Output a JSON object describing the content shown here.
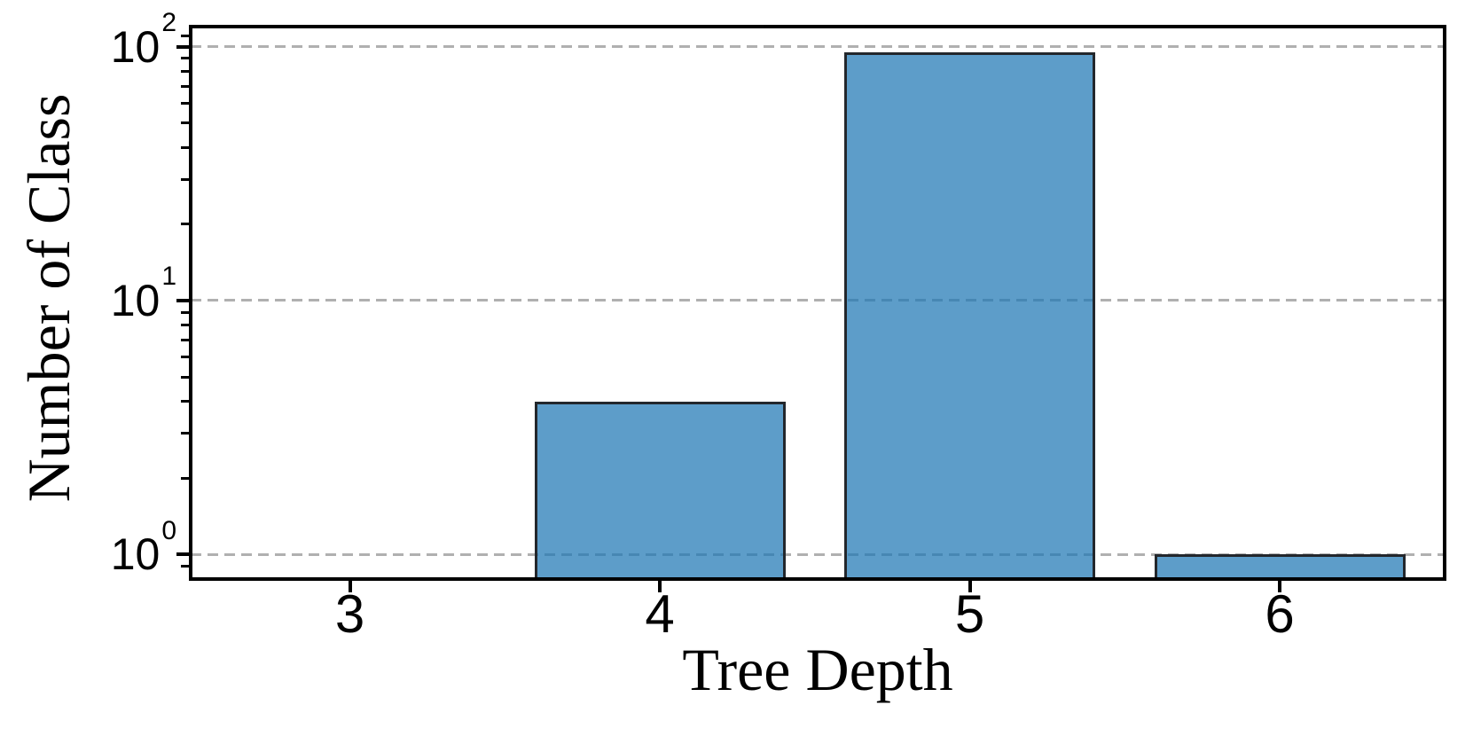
{
  "figure": {
    "background": "#ffffff"
  },
  "chart_data": {
    "type": "bar",
    "title": "",
    "xlabel": "Tree Depth",
    "ylabel": "Number of Class",
    "categories": [
      "3",
      "4",
      "5",
      "6"
    ],
    "x_positions": [
      3,
      4,
      5,
      6
    ],
    "values": [
      0,
      4,
      95,
      1
    ],
    "series_note": "single series; no bar drawn for category 3 (value 0 on log axis)",
    "yscale": "log",
    "ylim": [
      0.8,
      120
    ],
    "xlim": [
      2.49,
      6.53
    ],
    "bar_width_fraction": 0.81,
    "yticks_major": [
      {
        "value": 1,
        "base": "10",
        "exp": "0"
      },
      {
        "value": 10,
        "base": "10",
        "exp": "1"
      },
      {
        "value": 100,
        "base": "10",
        "exp": "2"
      }
    ],
    "yticks_minor": [
      0.9,
      2,
      3,
      4,
      5,
      6,
      7,
      8,
      9,
      20,
      30,
      40,
      50,
      60,
      70,
      80,
      90,
      110
    ],
    "grid": {
      "on": true,
      "axis": "y",
      "which": "major",
      "style": "dashed"
    },
    "legend": null,
    "colors": {
      "bar_fill_hex": "#1f77b4",
      "bar_fill_alpha": 0.72,
      "bar_edge": "#23272c",
      "grid": "#b0b0b0",
      "spine": "#000000",
      "text": "#000000"
    }
  }
}
